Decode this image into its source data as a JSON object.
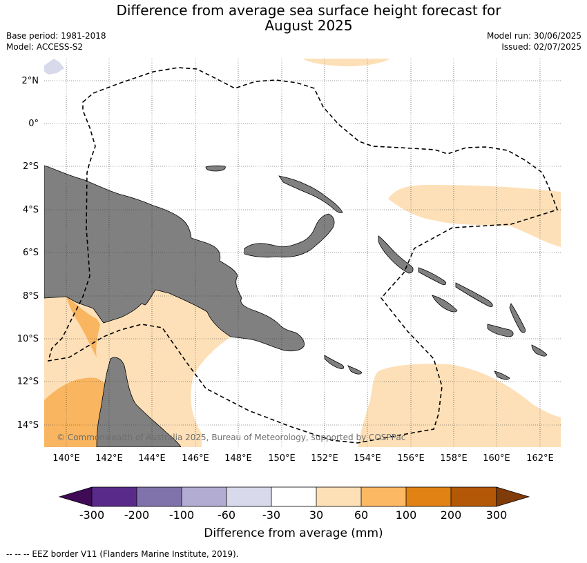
{
  "header": {
    "title_line1": "Difference from average sea surface height forecast for",
    "title_line2": "August 2025",
    "base_period": "Base period: 1981-2018",
    "model": "Model: ACCESS-S2",
    "model_run": "Model run: 30/06/2025",
    "issued": "Issued: 02/07/2025"
  },
  "map": {
    "lat_labels": [
      "2°N",
      "0°",
      "2°S",
      "4°S",
      "6°S",
      "8°S",
      "10°S",
      "12°S",
      "14°S"
    ],
    "lon_labels": [
      "140°E",
      "142°E",
      "144°E",
      "146°E",
      "148°E",
      "150°E",
      "152°E",
      "154°E",
      "156°E",
      "158°E",
      "160°E",
      "162°E"
    ],
    "copyright": "© Commonwealth of Australia 2025, Bureau of Meteorology, supported by COSPPac",
    "colors": {
      "land": "#808080",
      "band_30_60": "#fde0b7",
      "band_60_100": "#f9b560",
      "band_100_200": "#e08213",
      "band_neg30_neg60": "#d8daeb"
    }
  },
  "colorbar": {
    "ticks": [
      "-300",
      "-200",
      "-100",
      "-60",
      "-30",
      "30",
      "60",
      "100",
      "200",
      "300"
    ],
    "colors": [
      "#3f0a56",
      "#5a2a8b",
      "#8073ac",
      "#b2abd2",
      "#d8daeb",
      "#ffffff",
      "#fee0b6",
      "#fdb863",
      "#e08214",
      "#b35806",
      "#7f3b08"
    ],
    "label": "Difference from average (mm)"
  },
  "footer": {
    "legend": "--  --  -- EEZ border V11 (Flanders Marine Institute, 2019)."
  }
}
